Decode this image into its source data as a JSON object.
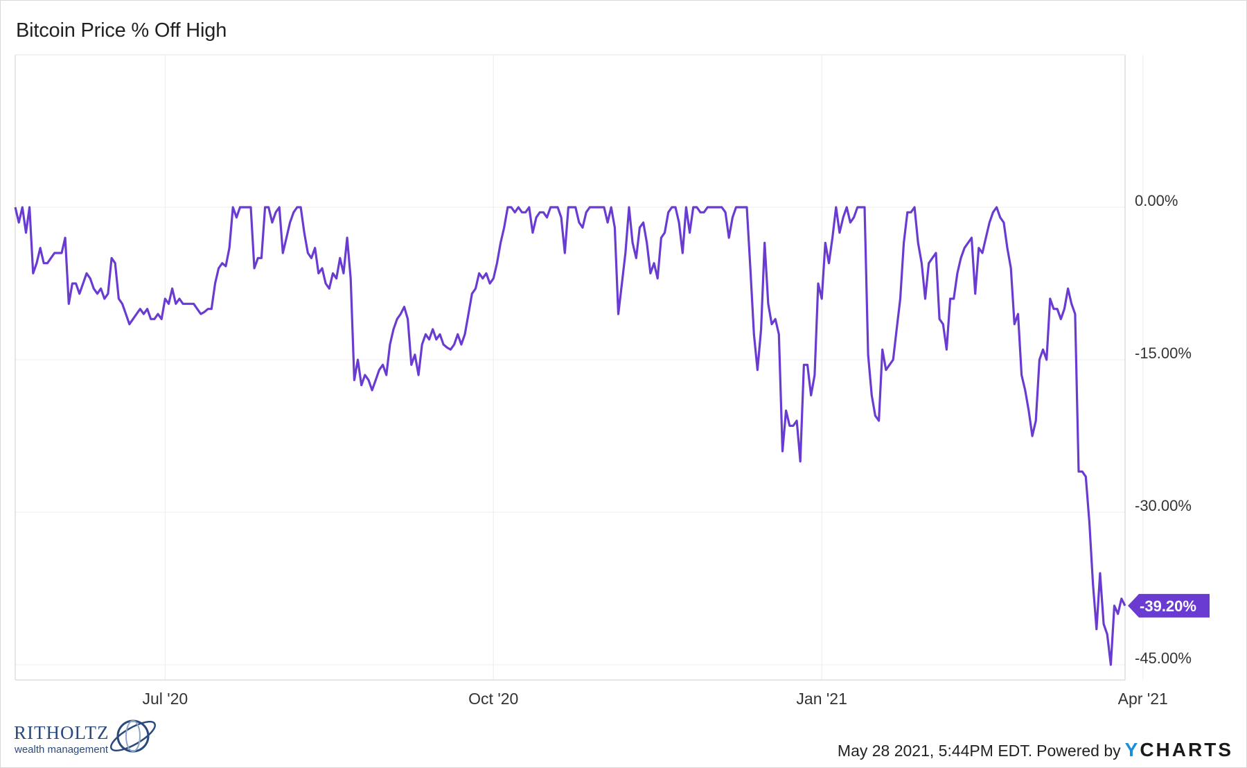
{
  "chart_data": {
    "type": "line",
    "title": "Bitcoin Price % Off High",
    "x_ticks": [
      "Jul '20",
      "Oct '20",
      "Jan '21",
      "Apr '21"
    ],
    "y_ticks": [
      "0.00%",
      "-15.00%",
      "-30.00%",
      "-45.00%"
    ],
    "ylim": [
      -46.5,
      15
    ],
    "grid": true,
    "line_color": "#6a3bd1",
    "last_value_label": "-39.20%",
    "series": [
      {
        "x_start": "2020-05-20",
        "x_step_days": 1,
        "values": [
          0,
          -1.5,
          0,
          -2.5,
          0,
          -6.5,
          -5.5,
          -4,
          -5.5,
          -5.5,
          -5,
          -4.5,
          -4.5,
          -4.5,
          -3,
          -9.5,
          -7.5,
          -7.5,
          -8.5,
          -7.5,
          -6.5,
          -7,
          -8,
          -8.5,
          -8,
          -9,
          -8.5,
          -5,
          -5.5,
          -9,
          -9.5,
          -10.5,
          -11.5,
          -11,
          -10.5,
          -10,
          -10.5,
          -10,
          -11,
          -11,
          -10.5,
          -11,
          -9,
          -9.5,
          -8,
          -9.5,
          -9,
          -9.5,
          -9.5,
          -9.5,
          -9.5,
          -10,
          -10.5,
          -10.3,
          -10,
          -10,
          -7.5,
          -6,
          -5.5,
          -5.8,
          -4,
          0,
          -1,
          0,
          0,
          0,
          0,
          -6,
          -5,
          -5,
          0,
          0,
          -1.5,
          -0.5,
          0,
          -4.5,
          -3,
          -1.5,
          -0.5,
          0,
          0,
          -2.5,
          -4.5,
          -5,
          -4,
          -6.5,
          -6,
          -7.5,
          -8,
          -6.5,
          -7,
          -5,
          -6.5,
          -3,
          -7,
          -17,
          -15,
          -17.5,
          -16.5,
          -17,
          -18,
          -17,
          -16,
          -15.5,
          -16.5,
          -13.5,
          -12,
          -11,
          -10.5,
          -9.8,
          -11,
          -15.5,
          -14.5,
          -16.5,
          -13.5,
          -12.5,
          -13,
          -12,
          -13,
          -12.5,
          -13.5,
          -13.8,
          -14,
          -13.5,
          -12.5,
          -13.5,
          -12.5,
          -10.5,
          -8.5,
          -8,
          -6.5,
          -7,
          -6.5,
          -7.5,
          -7,
          -5.5,
          -3.5,
          -2,
          0,
          0,
          -0.5,
          0,
          -0.5,
          -0.5,
          0,
          -2.5,
          -1,
          -0.5,
          -0.5,
          -1,
          0,
          0,
          0,
          -1,
          -4.5,
          0,
          0,
          0,
          -1.5,
          -2,
          -0.5,
          0,
          0,
          0,
          0,
          0,
          -1.5,
          0,
          -2,
          -10.5,
          -7.5,
          -4.5,
          0,
          -3.5,
          -5,
          -2,
          -1.5,
          -3.5,
          -6.5,
          -5.5,
          -7,
          -3,
          -2.5,
          -0.5,
          0,
          0,
          -1.5,
          -4.5,
          0,
          -2.5,
          0,
          0,
          -0.5,
          -0.5,
          0,
          0,
          0,
          0,
          0,
          -0.5,
          -3,
          -1,
          0,
          0,
          0,
          0,
          -6,
          -12.5,
          -16,
          -12,
          -3.5,
          -9.5,
          -11.5,
          -11,
          -12.5,
          -24,
          -20,
          -21.5,
          -21.5,
          -21,
          -25,
          -15.5,
          -15.5,
          -18.5,
          -16.5,
          -7.5,
          -9,
          -3.5,
          -5.5,
          -3,
          0,
          -2.5,
          -1,
          0,
          -1.5,
          -1,
          0,
          0,
          0,
          -14.5,
          -18.5,
          -20.5,
          -21,
          -14,
          -16,
          -15.5,
          -15,
          -12,
          -9,
          -3.5,
          -0.5,
          -0.5,
          0,
          -3.5,
          -5.5,
          -9,
          -5.5,
          -5,
          -4.5,
          -11,
          -11.5,
          -14,
          -9,
          -9,
          -6.5,
          -5,
          -4,
          -3.5,
          -3,
          -8.5,
          -4,
          -4.5,
          -3,
          -1.5,
          -0.5,
          0,
          -1,
          -1.5,
          -4,
          -6,
          -11.5,
          -10.5,
          -16.5,
          -18,
          -20,
          -22.5,
          -21,
          -15,
          -14,
          -15,
          -9,
          -10,
          -10,
          -11,
          -10,
          -8,
          -9.5,
          -10.5,
          -26,
          -26,
          -26.5,
          -31,
          -37,
          -41.5,
          -36,
          -41,
          -42,
          -45,
          -39.2,
          -40,
          -38.5,
          -39.2
        ]
      }
    ]
  },
  "logo": {
    "name": "RITHOLTZ",
    "subtitle": "wealth management"
  },
  "footer": {
    "timestamp": "May 28 2021, 5:44PM EDT.",
    "powered_by": "Powered by",
    "brand_y": "Y",
    "brand_rest": "CHARTS"
  }
}
